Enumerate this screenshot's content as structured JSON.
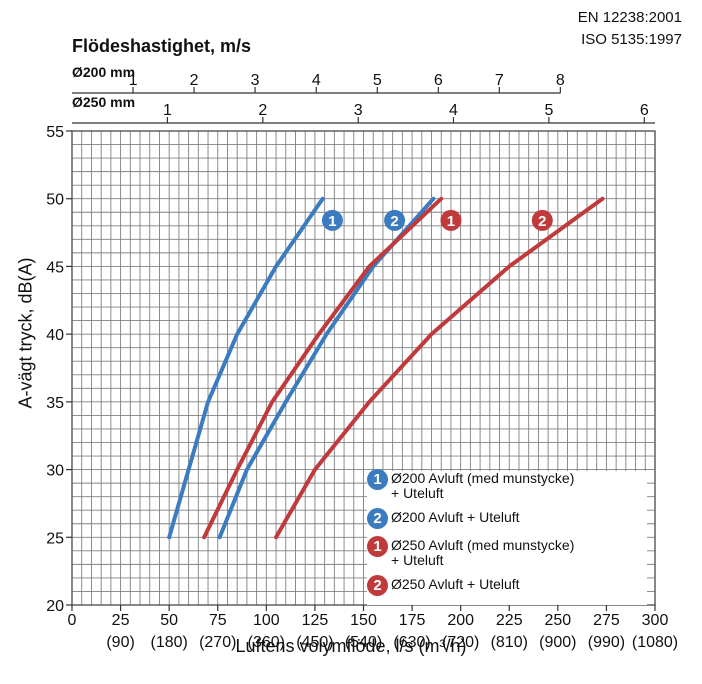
{
  "standards": [
    "EN 12238:2001",
    "ISO 5135:1997"
  ],
  "top_axis_title": "Flödeshastighet, m/s",
  "scale_200_label": "Ø200 mm",
  "scale_250_label": "Ø250 mm",
  "colors": {
    "blue": "#3b7bc0",
    "red": "#c0393b",
    "grid": "#808080"
  },
  "legend": [
    {
      "num": "1",
      "color": "blue",
      "line1": "Ø200 Avluft (med munstycke)",
      "line2": "+ Uteluft"
    },
    {
      "num": "2",
      "color": "blue",
      "line1": "Ø200 Avluft + Uteluft",
      "line2": ""
    },
    {
      "num": "1",
      "color": "red",
      "line1": "Ø250 Avluft (med munstycke)",
      "line2": "+ Uteluft"
    },
    {
      "num": "2",
      "color": "red",
      "line1": "Ø250 Avluft + Uteluft",
      "line2": ""
    }
  ],
  "chart_data": {
    "type": "line",
    "xlabel": "Luftens volymflöde, l/s (m³/h)",
    "ylabel": "A-vägt tryck, dB(A)",
    "xlim": [
      0,
      300
    ],
    "ylim": [
      20,
      55
    ],
    "x_ticks": [
      0,
      25,
      50,
      75,
      100,
      125,
      150,
      175,
      200,
      225,
      250,
      275,
      300
    ],
    "x_tick_labels_m3h": [
      "",
      "(90)",
      "(180)",
      "(270)",
      "(360)",
      "(450)",
      "(540)",
      "(630)",
      "(720)",
      "(810)",
      "(900)",
      "(990)",
      "(1080)"
    ],
    "y_ticks": [
      20,
      25,
      30,
      35,
      40,
      45,
      50,
      55
    ],
    "grid": true,
    "legend_position": "bottom-right",
    "top_scales": [
      {
        "label": "Ø200 mm",
        "ticks": [
          {
            "value": "1",
            "x": 31.4
          },
          {
            "value": "2",
            "x": 62.8
          },
          {
            "value": "3",
            "x": 94.2
          },
          {
            "value": "4",
            "x": 125.7
          },
          {
            "value": "5",
            "x": 157.1
          },
          {
            "value": "6",
            "x": 188.5
          },
          {
            "value": "7",
            "x": 219.9
          },
          {
            "value": "8",
            "x": 251.3
          }
        ]
      },
      {
        "label": "Ø250 mm",
        "ticks": [
          {
            "value": "1",
            "x": 49.1
          },
          {
            "value": "2",
            "x": 98.2
          },
          {
            "value": "3",
            "x": 147.3
          },
          {
            "value": "4",
            "x": 196.3
          },
          {
            "value": "5",
            "x": 245.4
          },
          {
            "value": "6",
            "x": 294.5
          }
        ]
      }
    ],
    "series": [
      {
        "num": "1",
        "color": "blue",
        "x": [
          50,
          70,
          85,
          105,
          129
        ],
        "y": [
          25,
          35,
          40,
          45,
          50
        ],
        "marker_at": [
          134,
          48.4
        ]
      },
      {
        "num": "2",
        "color": "blue",
        "x": [
          76,
          90,
          110,
          131,
          155,
          186
        ],
        "y": [
          25,
          30,
          35,
          40,
          45,
          50
        ],
        "marker_at": [
          166,
          48.4
        ]
      },
      {
        "num": "1",
        "color": "red",
        "x": [
          68,
          85,
          103,
          127,
          153,
          190
        ],
        "y": [
          25,
          30,
          35,
          40,
          45,
          50
        ],
        "marker_at": [
          195,
          48.4
        ]
      },
      {
        "num": "2",
        "color": "red",
        "x": [
          105,
          125,
          153,
          185,
          225,
          273
        ],
        "y": [
          25,
          30,
          35,
          40,
          45,
          50
        ],
        "marker_at": [
          242,
          48.4
        ]
      }
    ]
  }
}
